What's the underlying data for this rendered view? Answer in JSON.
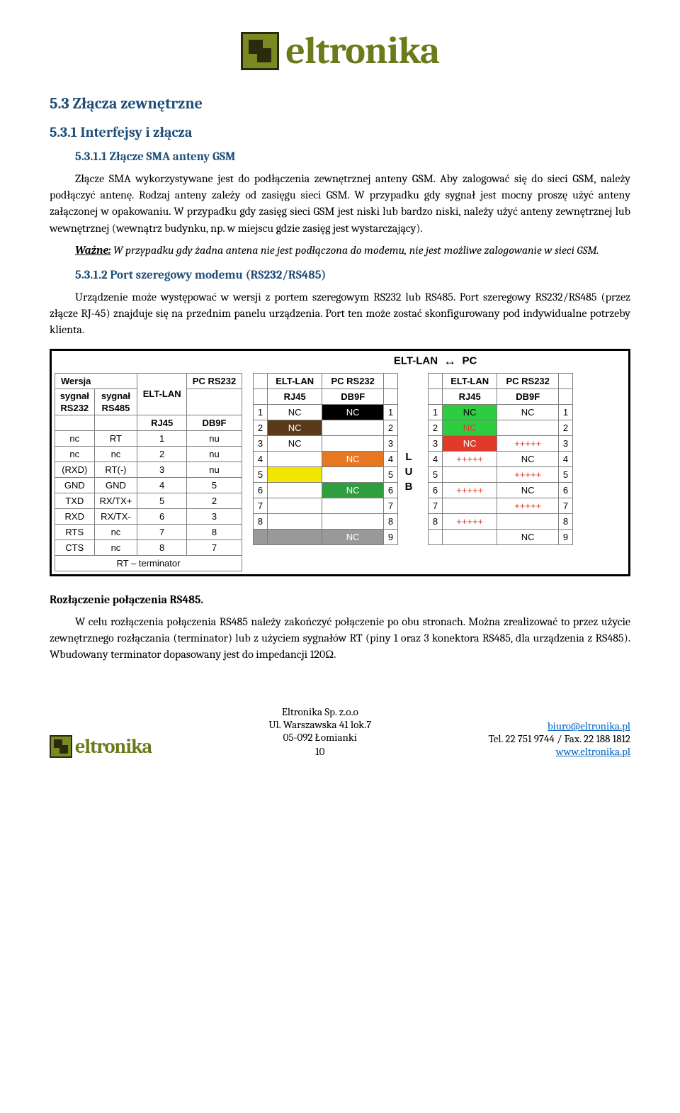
{
  "logo_text": "eltronika",
  "h_53": "5.3  Złącza zewnętrzne",
  "h_531": "5.3.1  Interfejsy i złącza",
  "h_5311": "5.3.1.1  Złącze SMA anteny GSM",
  "p1": "Złącze SMA wykorzystywane jest do podłączenia zewnętrznej anteny GSM. Aby zalogować się do sieci GSM, należy podłączyć antenę. Rodzaj anteny zależy od zasięgu sieci GSM. W przypadku gdy sygnał jest mocny proszę użyć anteny załączonej w opakowaniu. W przypadku gdy zasięg sieci GSM jest niski lub bardzo niski, należy użyć anteny zewnętrznej lub wewnętrznej (wewnątrz budynku, np. w miejscu gdzie zasięg jest wystarczający).",
  "p2_label": "Ważne:",
  "p2_rest": " W przypadku gdy żadna antena nie jest podłączona do modemu, nie jest możliwe zalogowanie w sieci GSM.",
  "h_5312": "5.3.1.2  Port szeregowy modemu (RS232/RS485)",
  "p3": "Urządzenie może występować w wersji z portem szeregowym RS232 lub RS485. Port szeregowy RS232/RS485 (przez złącze RJ-45) znajduje się na przednim panelu urządzenia. Port ten może zostać skonfigurowany pod indywidualne potrzeby klienta.",
  "table": {
    "title_left": "ELT-LAN",
    "title_right": "PC",
    "wersja": "Wersja",
    "cols_left": [
      "sygnał RS232",
      "sygnał RS485",
      "ELT-LAN",
      "PC RS232"
    ],
    "sub_left": [
      "",
      "",
      "RJ45",
      "DB9F"
    ],
    "rows_left": [
      [
        "nc",
        "RT",
        "1",
        "nu"
      ],
      [
        "nc",
        "nc",
        "2",
        "nu"
      ],
      [
        "(RXD)",
        "RT(-)",
        "3",
        "nu"
      ],
      [
        "GND",
        "GND",
        "4",
        "5"
      ],
      [
        "TXD",
        "RX/TX+",
        "5",
        "2"
      ],
      [
        "RXD",
        "RX/TX-",
        "6",
        "3"
      ],
      [
        "RTS",
        "nc",
        "7",
        "8"
      ],
      [
        "CTS",
        "nc",
        "8",
        "7"
      ]
    ],
    "rt_term": "RT – terminator",
    "cols_mid": [
      "",
      "ELT-LAN",
      "PC RS232",
      ""
    ],
    "sub_mid": [
      "",
      "RJ45",
      "DB9F",
      ""
    ],
    "rows_mid": [
      [
        "1",
        "NC",
        "NC",
        "1"
      ],
      [
        "2",
        "NC",
        "",
        "2"
      ],
      [
        "3",
        "NC",
        "",
        "3"
      ],
      [
        "4",
        "",
        "NC",
        "4"
      ],
      [
        "5",
        "",
        "",
        "5"
      ],
      [
        "6",
        "",
        "NC",
        "6"
      ],
      [
        "7",
        "",
        "",
        "7"
      ],
      [
        "8",
        "",
        "",
        "8"
      ],
      [
        "",
        "",
        "NC",
        "9"
      ]
    ],
    "mid_colors": [
      [
        "",
        "",
        "#000000",
        ""
      ],
      [
        "",
        "#5a3a1a",
        "",
        ""
      ],
      [
        "",
        "",
        "",
        ""
      ],
      [
        "",
        "",
        "#e87722",
        ""
      ],
      [
        "",
        "#f2e600",
        "",
        ""
      ],
      [
        "",
        "",
        "#2e9e3f",
        ""
      ],
      [
        "",
        "",
        "",
        ""
      ],
      [
        "",
        "",
        "",
        ""
      ],
      [
        "#999999",
        "#999999",
        "#999999",
        ""
      ]
    ],
    "mid_textcolors": [
      [
        "",
        "",
        "#ffffff",
        ""
      ],
      [
        "",
        "#ffffff",
        "",
        ""
      ],
      [
        "",
        "",
        "",
        ""
      ],
      [
        "",
        "",
        "#ffffff",
        ""
      ],
      [
        "",
        "",
        "",
        ""
      ],
      [
        "",
        "",
        "#ffffff",
        ""
      ],
      [
        "",
        "",
        "",
        ""
      ],
      [
        "",
        "",
        "",
        ""
      ],
      [
        "#ffffff",
        "#ffffff",
        "#ffffff",
        ""
      ]
    ],
    "lub": [
      "L",
      "U",
      "B"
    ],
    "rows_right": [
      [
        "1",
        "NC",
        "NC",
        "1"
      ],
      [
        "2",
        "NC",
        "",
        "2"
      ],
      [
        "3",
        "NC",
        "+++++",
        "3"
      ],
      [
        "4",
        "+++++",
        "NC",
        "4"
      ],
      [
        "5",
        "",
        "+++++",
        "5"
      ],
      [
        "6",
        "+++++",
        "NC",
        "6"
      ],
      [
        "7",
        "",
        "+++++",
        "7"
      ],
      [
        "8",
        "+++++",
        "",
        "8"
      ],
      [
        "",
        "",
        "NC",
        "9"
      ]
    ],
    "right_colors": [
      [
        "",
        "#2ecc40",
        "",
        ""
      ],
      [
        "",
        "#2ecc40",
        "",
        ""
      ],
      [
        "",
        "#e03a2a",
        "",
        ""
      ],
      [
        "",
        "",
        "",
        ""
      ],
      [
        "",
        "",
        "",
        ""
      ],
      [
        "",
        "",
        "",
        ""
      ],
      [
        "",
        "",
        "",
        ""
      ],
      [
        "",
        "",
        "",
        ""
      ],
      [
        "",
        "",
        "",
        ""
      ]
    ],
    "right_textcolors": [
      [
        "",
        "",
        "",
        ""
      ],
      [
        "",
        "#e03a2a",
        "",
        ""
      ],
      [
        "",
        "#ffffff",
        "#e03a2a",
        ""
      ],
      [
        "",
        "#e03a2a",
        "",
        ""
      ],
      [
        "",
        "",
        "#e03a2a",
        ""
      ],
      [
        "",
        "#e03a2a",
        "",
        ""
      ],
      [
        "",
        "",
        "#e03a2a",
        ""
      ],
      [
        "",
        "#e03a2a",
        "",
        ""
      ],
      [
        "",
        "",
        "",
        ""
      ]
    ]
  },
  "h_rozl": "Rozłączenie połączenia RS485.",
  "p4": "W celu rozłączenia połączenia RS485 należy zakończyć połączenie po obu stronach. Można zrealizować to przez użycie zewnętrznego rozłączania (terminator) lub z użyciem sygnałów RT (piny 1 oraz 3 konektora RS485, dla urządzenia z RS485). Wbudowany terminator dopasowany jest do impedancji 120Ω.",
  "footer": {
    "company": "Eltronika Sp. z.o.o",
    "addr1": "Ul. Warszawska 41 lok.7",
    "addr2": "05-092 Łomianki",
    "email": "biuro@eltronika.pl",
    "phone": "Tel. 22 751 9744 / Fax. 22 188 1812",
    "web": "www.eltronika.pl",
    "page": "10"
  }
}
